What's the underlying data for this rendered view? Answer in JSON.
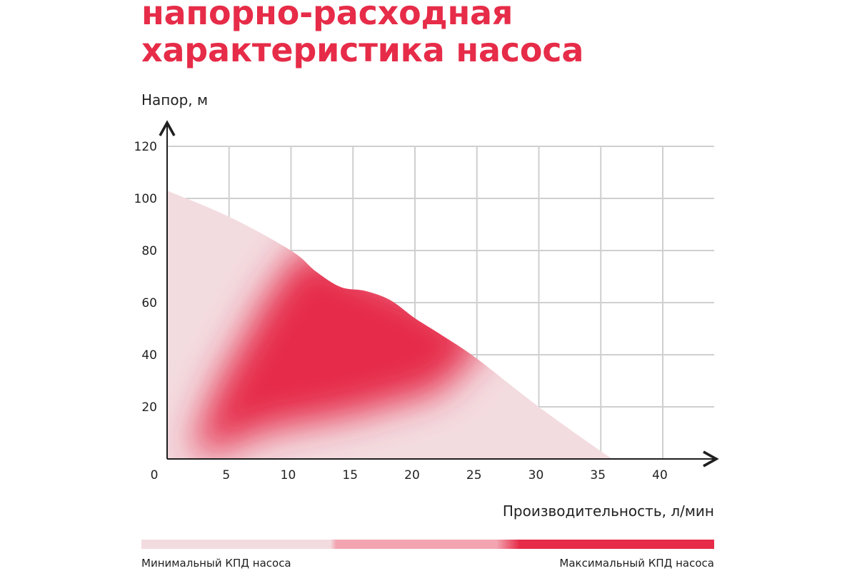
{
  "title": {
    "line1": "напорно-расходная",
    "line2": "характеристика насоса"
  },
  "colors": {
    "accent": "#e62c48",
    "light": "#f3dce0",
    "grid": "#cfcfcf",
    "axis": "#1f1f1f"
  },
  "legend": {
    "min_label": "Минимальный КПД насоса",
    "max_label": "Максимальный КПД насоса"
  },
  "chart_data": {
    "type": "area",
    "title": "напорно-расходная характеристика насоса",
    "xlabel": "Производительность, л/мин",
    "ylabel": "Напор, м",
    "xlim": [
      0,
      45
    ],
    "ylim": [
      0,
      130
    ],
    "x_ticks": [
      5,
      10,
      15,
      20,
      25,
      30,
      35,
      40
    ],
    "y_ticks": [
      20,
      40,
      60,
      80,
      100,
      120
    ],
    "origin_label": "0",
    "grid": true,
    "series": [
      {
        "points": [
          [
            0,
            103
          ],
          [
            5,
            93
          ],
          [
            10,
            80
          ],
          [
            12,
            72
          ],
          [
            14,
            66
          ],
          [
            16,
            64.5
          ],
          [
            18,
            61
          ],
          [
            20,
            54
          ],
          [
            22,
            48
          ],
          [
            25,
            38.5
          ],
          [
            30,
            20
          ],
          [
            35,
            3
          ],
          [
            36,
            0
          ]
        ]
      }
    ]
  }
}
